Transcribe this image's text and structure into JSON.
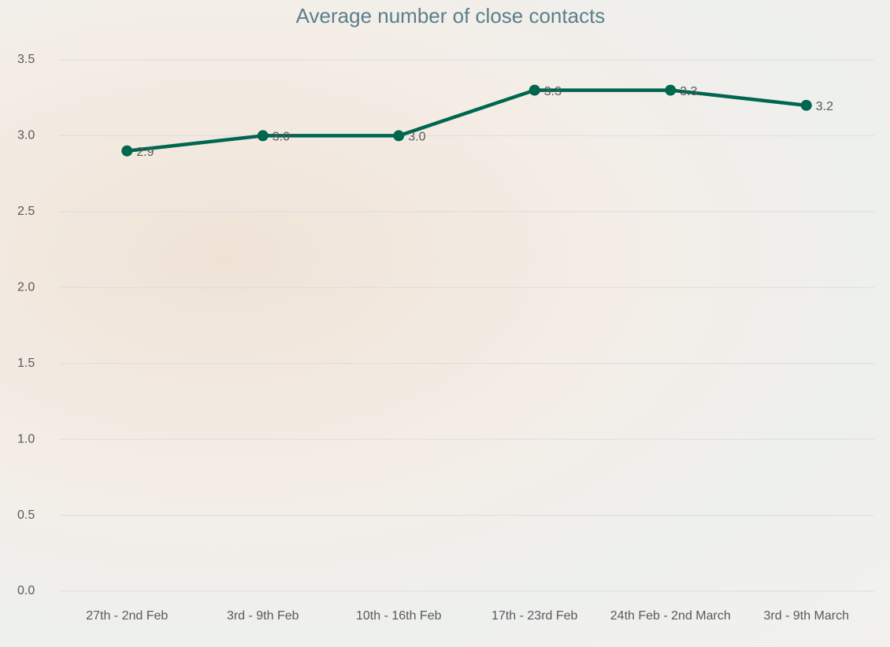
{
  "chart_data": {
    "type": "line",
    "title": "Average number of close contacts",
    "categories": [
      "27th - 2nd Feb",
      "3rd - 9th Feb",
      "10th - 16th Feb",
      "17th - 23rd Feb",
      "24th Feb - 2nd March",
      "3rd - 9th March"
    ],
    "series": [
      {
        "name": "Average number of close contacts",
        "color": "#00664f",
        "values": [
          2.9,
          3.0,
          3.0,
          3.3,
          3.3,
          3.2
        ],
        "value_labels": [
          "2.9",
          "3.0",
          "3.0",
          "3.3",
          "3.3",
          "3.2"
        ]
      }
    ],
    "ylim": [
      0,
      3.5
    ],
    "yticks": [
      {
        "value": 0,
        "label": "0.0"
      },
      0.5,
      {
        "value": 1,
        "label": "1.0"
      },
      1.5,
      {
        "value": 2,
        "label": "2.0"
      },
      2.5,
      {
        "value": 3,
        "label": "3.0"
      },
      3.5
    ],
    "grid": true
  }
}
